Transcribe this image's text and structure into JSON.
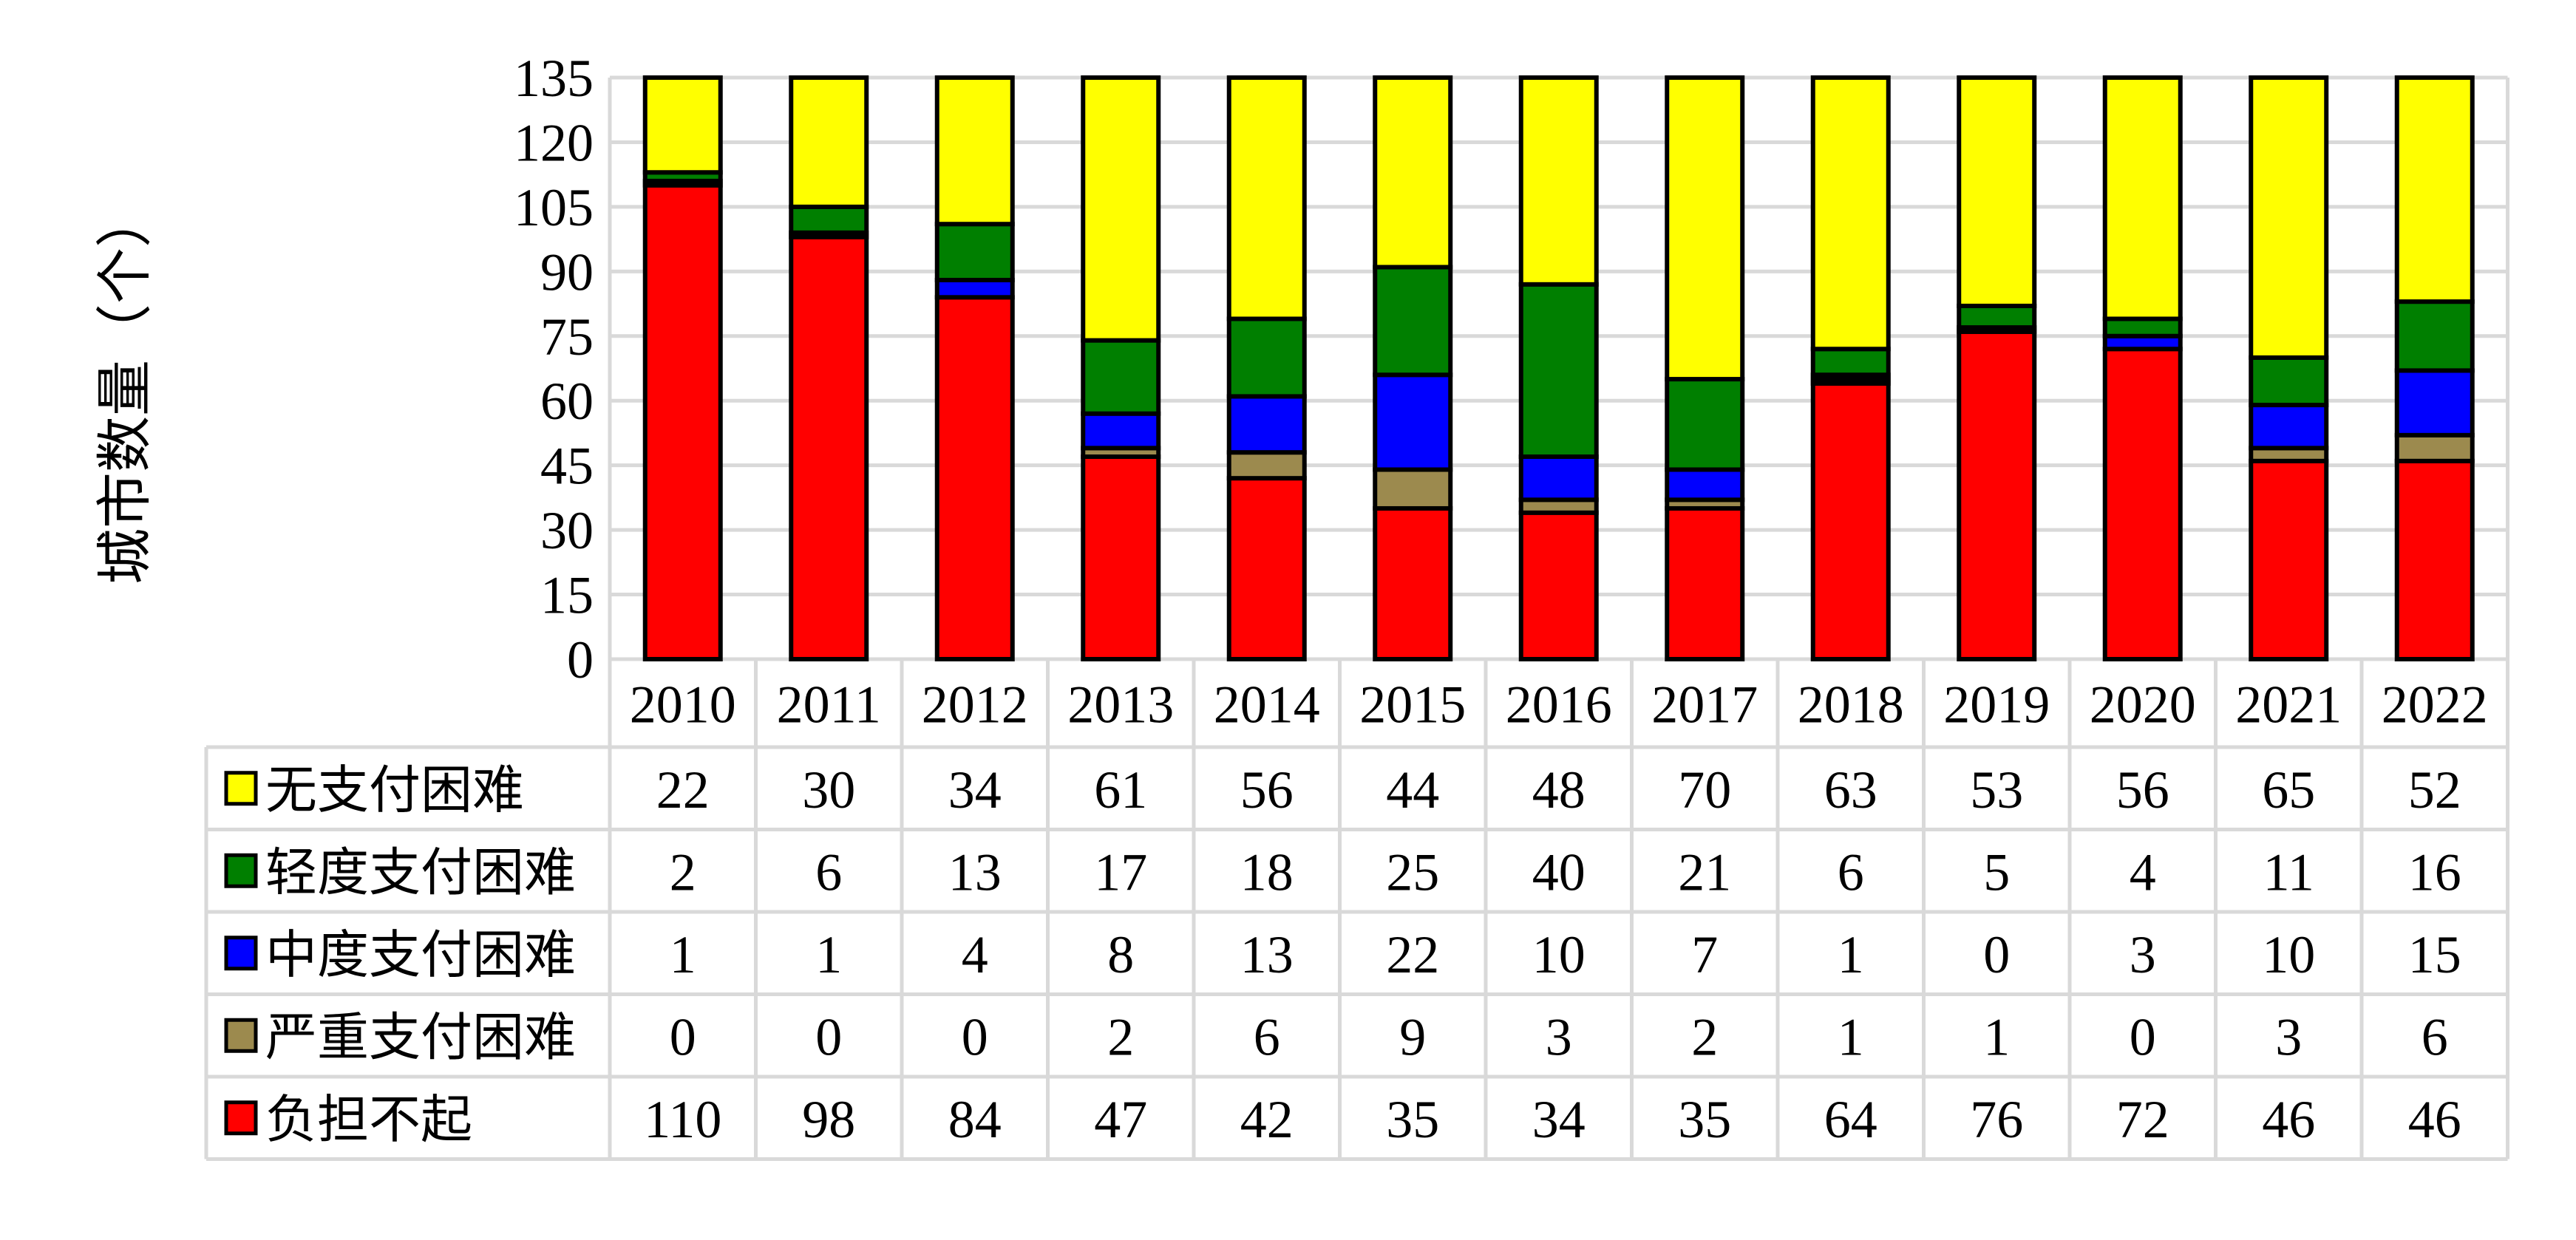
{
  "chart_data": {
    "type": "bar",
    "stacked": true,
    "ylabel": "城市数量（个）",
    "ylim": [
      0,
      135
    ],
    "yticks": [
      0,
      15,
      30,
      45,
      60,
      75,
      90,
      105,
      120,
      135
    ],
    "grid": true,
    "legend_placement": "data-table-left",
    "categories": [
      "2010",
      "2011",
      "2012",
      "2013",
      "2014",
      "2015",
      "2016",
      "2017",
      "2018",
      "2019",
      "2020",
      "2021",
      "2022"
    ],
    "series": [
      {
        "name": "负担不起",
        "color": "#ff0000",
        "values": [
          110,
          98,
          84,
          47,
          42,
          35,
          34,
          35,
          64,
          76,
          72,
          46,
          46
        ]
      },
      {
        "name": "严重支付困难",
        "color": "#9c8a4e",
        "values": [
          0,
          0,
          0,
          2,
          6,
          9,
          3,
          2,
          1,
          1,
          0,
          3,
          6
        ]
      },
      {
        "name": "中度支付困难",
        "color": "#0000ff",
        "values": [
          1,
          1,
          4,
          8,
          13,
          22,
          10,
          7,
          1,
          0,
          3,
          10,
          15
        ]
      },
      {
        "name": "轻度支付困难",
        "color": "#007f00",
        "values": [
          2,
          6,
          13,
          17,
          18,
          25,
          40,
          21,
          6,
          5,
          4,
          11,
          16
        ]
      },
      {
        "name": "无支付困难",
        "color": "#ffff00",
        "values": [
          22,
          30,
          34,
          61,
          56,
          44,
          48,
          70,
          63,
          53,
          56,
          65,
          52
        ]
      }
    ],
    "table_row_order": [
      "无支付困难",
      "轻度支付困难",
      "中度支付困难",
      "严重支付困难",
      "负担不起"
    ]
  }
}
